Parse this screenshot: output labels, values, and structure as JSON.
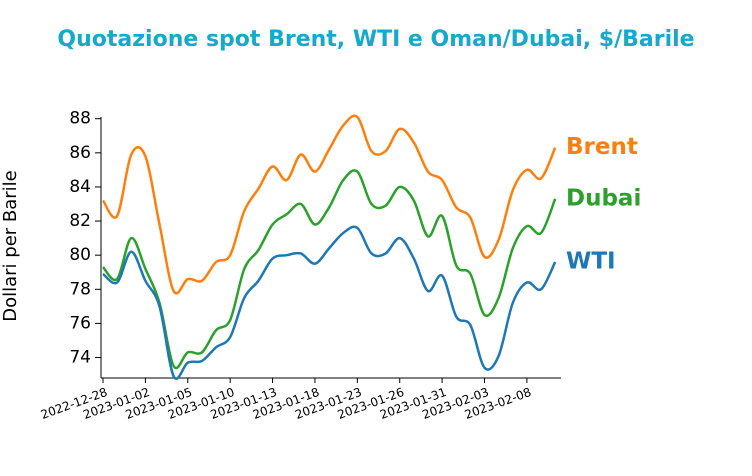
{
  "chart_data": {
    "type": "line",
    "title": "Quotazione spot Brent, WTI e Oman/Dubai, $/Barile",
    "y_label": "Dollari per Barile",
    "categories": [
      "2022-12-28",
      null,
      null,
      "2023-01-02",
      null,
      null,
      "2023-01-05",
      null,
      null,
      "2023-01-10",
      null,
      null,
      "2023-01-13",
      null,
      null,
      "2023-01-18",
      null,
      null,
      "2023-01-23",
      null,
      null,
      "2023-01-26",
      null,
      null,
      "2023-01-31",
      null,
      null,
      "2023-02-03",
      null,
      null,
      "2023-02-08",
      null,
      null
    ],
    "series": [
      {
        "name": "Brent",
        "color": "#ff7f0e",
        "values": [
          83.2,
          82.3,
          85.9,
          85.8,
          81.8,
          77.9,
          78.6,
          78.5,
          79.6,
          80.0,
          82.6,
          83.9,
          85.2,
          84.4,
          85.9,
          84.9,
          86.2,
          87.6,
          88.1,
          86.1,
          86.1,
          87.4,
          86.6,
          84.9,
          84.4,
          82.8,
          82.2,
          79.9,
          80.9,
          83.8,
          85.0,
          84.5,
          86.3
        ]
      },
      {
        "name": "Dubai",
        "color": "#2ca02c",
        "values": [
          79.3,
          78.6,
          81.0,
          79.2,
          77.2,
          73.5,
          74.3,
          74.3,
          75.6,
          76.2,
          79.2,
          80.3,
          81.8,
          82.4,
          83.0,
          81.8,
          82.8,
          84.4,
          84.9,
          83.0,
          82.9,
          84.0,
          83.2,
          81.1,
          82.3,
          79.4,
          78.9,
          76.5,
          77.5,
          80.4,
          81.7,
          81.3,
          83.3
        ]
      },
      {
        "name": "WTI",
        "color": "#1f77b4",
        "values": [
          78.9,
          78.4,
          80.2,
          78.5,
          77.0,
          72.9,
          73.7,
          73.8,
          74.6,
          75.2,
          77.5,
          78.5,
          79.8,
          80.0,
          80.1,
          79.5,
          80.4,
          81.3,
          81.6,
          80.1,
          80.1,
          81.0,
          79.8,
          77.9,
          78.8,
          76.4,
          75.9,
          73.4,
          74.1,
          77.2,
          78.4,
          78.0,
          79.6
        ]
      }
    ],
    "ylim": [
      72.8,
      88.1
    ],
    "yticks": [
      74,
      76,
      78,
      80,
      82,
      84,
      86,
      88
    ],
    "grid": false,
    "title_color": "#17a9c9"
  }
}
